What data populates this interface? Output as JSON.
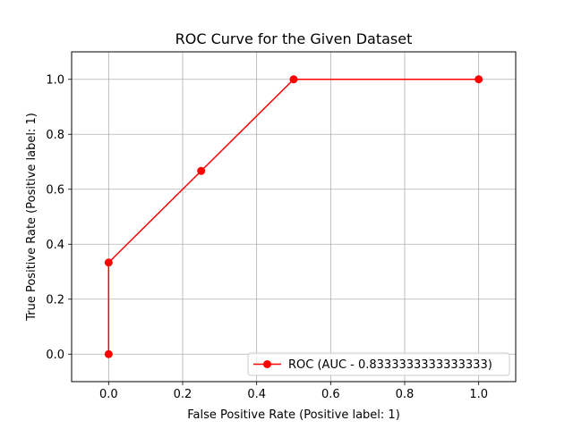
{
  "chart_data": {
    "type": "line",
    "title": "ROC Curve for the Given Dataset",
    "xlabel": "False Positive Rate (Positive label: 1)",
    "ylabel": "True Positive Rate (Positive label: 1)",
    "xlim": [
      -0.1,
      1.1
    ],
    "ylim": [
      -0.1,
      1.1
    ],
    "xticks": [
      0.0,
      0.2,
      0.4,
      0.6,
      0.8,
      1.0
    ],
    "yticks": [
      0.0,
      0.2,
      0.4,
      0.6,
      0.8,
      1.0
    ],
    "xtick_labels": [
      "0.0",
      "0.2",
      "0.4",
      "0.6",
      "0.8",
      "1.0"
    ],
    "ytick_labels": [
      "0.0",
      "0.2",
      "0.4",
      "0.6",
      "0.8",
      "1.0"
    ],
    "grid": true,
    "legend_position": "bottom-right",
    "series": [
      {
        "name": "ROC (AUC - 0.8333333333333333)",
        "color": "#ff0000",
        "marker": "circle",
        "x": [
          0.0,
          0.0,
          0.25,
          0.5,
          1.0
        ],
        "y": [
          0.0,
          0.3333333333,
          0.6666666667,
          1.0,
          1.0
        ]
      }
    ]
  }
}
